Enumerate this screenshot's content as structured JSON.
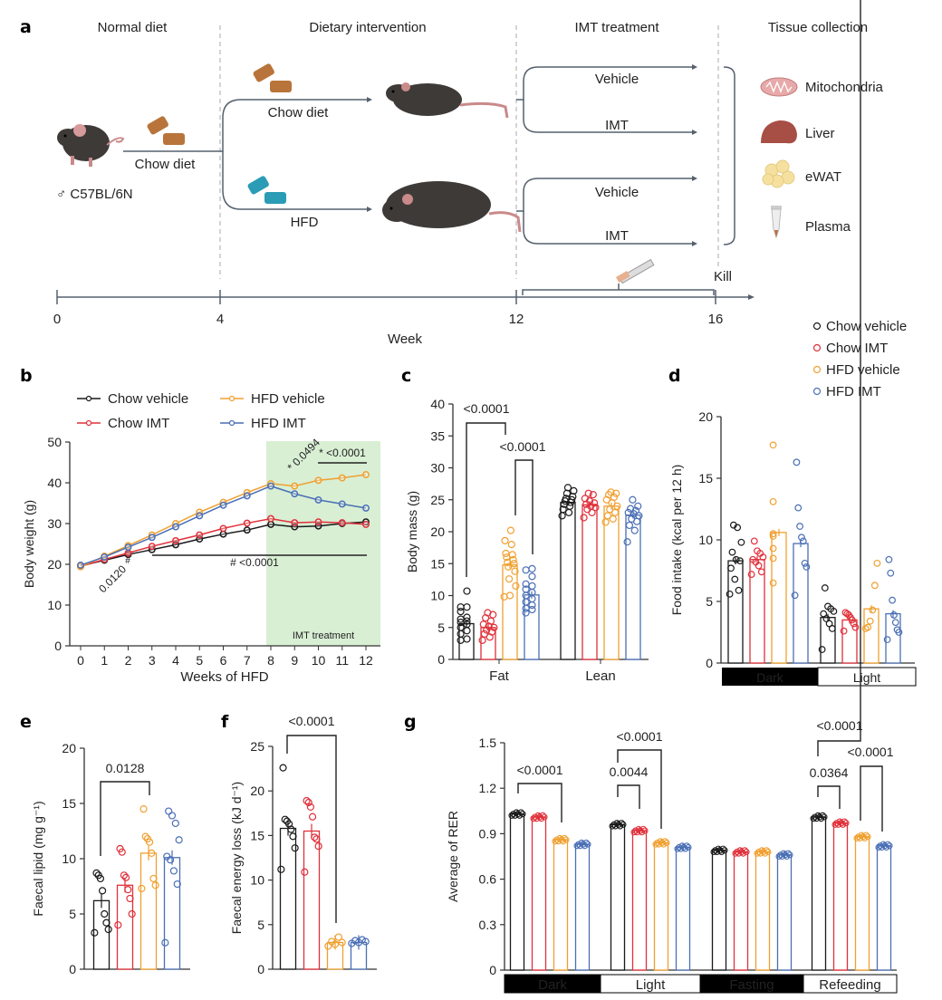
{
  "colors": {
    "chow_vehicle": "#1a1a1a",
    "chow_imt": "#e0303a",
    "hfd_vehicle": "#f0a030",
    "hfd_imt": "#4a6fb5",
    "imt_shade": "#d8efd4",
    "axis": "#333333",
    "timeline": "#55606e",
    "chow_pellet": "#b8743a",
    "hfd_pellet": "#2a9cb5",
    "mouse": "#3e3a38"
  },
  "panel_a": {
    "label": "a",
    "phases": [
      "Normal diet",
      "Dietary intervention",
      "IMT treatment",
      "Tissue collection"
    ],
    "mouse_strain": "♂ C57BL/6N",
    "initial_diet": "Chow diet",
    "branches": [
      "Chow diet",
      "HFD"
    ],
    "treatments": [
      "Vehicle",
      "IMT",
      "Vehicle",
      "IMT"
    ],
    "tissues": [
      "Mitochondria",
      "Liver",
      "eWAT",
      "Plasma"
    ],
    "kill_label": "Kill",
    "timeline_ticks": [
      "0",
      "4",
      "12",
      "16"
    ],
    "timeline_label": "Week"
  },
  "legend_groups": [
    "Chow vehicle",
    "Chow IMT",
    "HFD vehicle",
    "HFD IMT"
  ],
  "chart_data": [
    {
      "panel": "b",
      "type": "line",
      "xlabel": "Weeks of HFD",
      "ylabel": "Body weight (g)",
      "x": [
        0,
        1,
        2,
        3,
        4,
        5,
        6,
        7,
        8,
        9,
        10,
        11,
        12
      ],
      "ylim": [
        0,
        50
      ],
      "yticks": [
        0,
        10,
        20,
        30,
        40,
        50
      ],
      "shaded_region": {
        "from": 8,
        "to": 12,
        "label": "IMT treatment"
      },
      "series": [
        {
          "name": "Chow vehicle",
          "values": [
            19.6,
            21.0,
            22.4,
            23.6,
            24.8,
            26.2,
            27.4,
            28.4,
            29.8,
            29.2,
            29.4,
            30.0,
            30.4
          ]
        },
        {
          "name": "Chow IMT",
          "values": [
            19.5,
            21.2,
            22.8,
            24.4,
            25.8,
            27.2,
            28.8,
            30.1,
            31.2,
            30.2,
            30.4,
            30.2,
            29.8
          ]
        },
        {
          "name": "HFD vehicle",
          "values": [
            19.4,
            22.0,
            24.6,
            27.2,
            30.0,
            32.8,
            35.2,
            37.6,
            39.8,
            39.2,
            40.6,
            41.2,
            42.0
          ]
        },
        {
          "name": "HFD IMT",
          "values": [
            19.8,
            21.8,
            24.2,
            26.6,
            29.2,
            31.9,
            34.5,
            36.8,
            39.2,
            37.3,
            35.8,
            34.8,
            33.8
          ]
        }
      ],
      "annotations": [
        {
          "text": "0.0120",
          "rotated": true
        },
        {
          "text": "#"
        },
        {
          "text": "# <0.0001"
        },
        {
          "text": "* 0.0494",
          "rotated": true
        },
        {
          "text": "* <0.0001"
        }
      ]
    },
    {
      "panel": "c",
      "type": "bar",
      "ylabel": "Body mass (g)",
      "categories": [
        "Fat",
        "Lean"
      ],
      "ylim": [
        0,
        40
      ],
      "yticks": [
        0,
        5,
        10,
        15,
        20,
        25,
        30,
        35,
        40
      ],
      "series": [
        {
          "name": "Chow vehicle",
          "values": [
            5.6,
            24.6
          ],
          "points": [
            [
              3,
              3.2,
              4,
              4.5,
              5,
              5.5,
              5.8,
              6,
              6.3,
              6.6,
              7.5,
              8.2,
              8.2,
              10.7
            ],
            [
              22.5,
              23,
              23.5,
              24,
              24.3,
              24.6,
              24.8,
              25,
              25.2,
              25.5,
              26,
              26.4,
              26.9
            ]
          ]
        },
        {
          "name": "Chow IMT",
          "values": [
            5.0,
            24.2
          ],
          "points": [
            [
              3,
              3.5,
              4,
              4.3,
              4.6,
              5,
              5.2,
              5.5,
              6,
              6.5,
              7,
              7.3
            ],
            [
              22.2,
              23,
              23.5,
              23.8,
              24,
              24.3,
              24.5,
              24.8,
              25.2,
              25.8,
              26
            ]
          ]
        },
        {
          "name": "HFD vehicle",
          "values": [
            14.8,
            24.0
          ],
          "points": [
            [
              9.8,
              10,
              11.5,
              12.6,
              13.8,
              14.5,
              15,
              15.2,
              15.6,
              16,
              16.4,
              16.6,
              18,
              18.6,
              20.2
            ],
            [
              21.5,
              22,
              22.5,
              23,
              23.5,
              24,
              24.5,
              25,
              25.4,
              25.8,
              26,
              26.2
            ]
          ]
        },
        {
          "name": "HFD IMT",
          "values": [
            10.1,
            22.6
          ],
          "points": [
            [
              7.3,
              7.8,
              8,
              8.5,
              9,
              9.5,
              10,
              10.5,
              11,
              11.5,
              11.8,
              13,
              14,
              14.2
            ],
            [
              18.4,
              20.2,
              21,
              21.6,
              22,
              22.5,
              22.8,
              23,
              23.3,
              23.6,
              24,
              25
            ]
          ]
        }
      ],
      "annotations": [
        {
          "text": "<0.0001",
          "compare": [
            "Fat: Chow vehicle",
            "Fat: HFD vehicle"
          ]
        },
        {
          "text": "<0.0001",
          "compare": [
            "Fat: HFD vehicle",
            "Fat: HFD IMT"
          ]
        }
      ]
    },
    {
      "panel": "d",
      "type": "bar",
      "ylabel": "Food intake (kcal per 12 h)",
      "categories": [
        "Dark",
        "Light"
      ],
      "ylim": [
        0,
        20
      ],
      "yticks": [
        0,
        5,
        10,
        15,
        20
      ],
      "series": [
        {
          "name": "Chow vehicle",
          "values": [
            8.3,
            3.7
          ],
          "points": [
            [
              5.6,
              5.9,
              6.8,
              7.7,
              8.3,
              8.4,
              9.0,
              9.8,
              11.0,
              11.2
            ],
            [
              1.1,
              2.8,
              3.2,
              3.6,
              4.0,
              4.2,
              4.4,
              4.6,
              6.1
            ]
          ]
        },
        {
          "name": "Chow IMT",
          "values": [
            8.4,
            3.5
          ],
          "points": [
            [
              7.2,
              7.4,
              7.9,
              8.2,
              8.4,
              8.6,
              8.9,
              9.1,
              9.9
            ],
            [
              2.6,
              2.9,
              3.2,
              3.5,
              3.7,
              3.9,
              4.0,
              4.1
            ]
          ]
        },
        {
          "name": "HFD vehicle",
          "values": [
            10.6,
            4.4
          ],
          "points": [
            [
              6.5,
              8.5,
              9.3,
              10.3,
              10.5,
              13.1,
              17.7
            ],
            [
              2.8,
              2.9,
              3.4,
              4.3,
              6.3,
              8.1
            ]
          ]
        },
        {
          "name": "HFD IMT",
          "values": [
            9.7,
            4.0
          ],
          "points": [
            [
              5.5,
              7.8,
              8.1,
              9.9,
              10.2,
              11.1,
              12.6,
              16.3
            ],
            [
              1.9,
              2.5,
              2.7,
              3.3,
              3.9,
              5.1,
              7.3,
              8.4
            ]
          ]
        }
      ]
    },
    {
      "panel": "e",
      "type": "bar",
      "ylabel": "Faecal lipid (mg g⁻¹)",
      "categories": [
        "Chow vehicle",
        "Chow IMT",
        "HFD vehicle",
        "HFD IMT"
      ],
      "ylim": [
        0,
        20
      ],
      "yticks": [
        0,
        5,
        10,
        15,
        20
      ],
      "values": [
        6.2,
        7.6,
        10.5,
        10.1
      ],
      "points": [
        [
          3.3,
          3.6,
          4.2,
          5.0,
          7.1,
          8.2,
          8.5,
          8.7
        ],
        [
          4.0,
          5.0,
          6.4,
          7.2,
          8.3,
          8.5,
          10.6,
          10.9
        ],
        [
          7.3,
          7.6,
          8.2,
          10.5,
          11.5,
          11.8,
          12.0,
          14.5
        ],
        [
          2.4,
          7.7,
          8.9,
          9.9,
          10.2,
          11.7,
          13.2,
          13.9,
          14.3
        ]
      ],
      "annotations": [
        {
          "text": "0.0128",
          "compare": [
            "Chow vehicle",
            "HFD vehicle"
          ]
        }
      ]
    },
    {
      "panel": "f",
      "type": "bar",
      "ylabel": "Faecal energy loss (kJ d⁻¹)",
      "categories": [
        "Chow vehicle",
        "Chow IMT",
        "HFD vehicle",
        "HFD IMT"
      ],
      "ylim": [
        0,
        25
      ],
      "yticks": [
        0,
        5,
        10,
        15,
        20,
        25
      ],
      "values": [
        15.8,
        15.5,
        3.0,
        3.0
      ],
      "points": [
        [
          11.2,
          13.6,
          14.9,
          15.7,
          16.3,
          16.6,
          16.8,
          22.6
        ],
        [
          10.9,
          13.8,
          14.6,
          14.8,
          17.1,
          18.2,
          18.7,
          18.9
        ],
        [
          2.6,
          2.8,
          3.0,
          3.1,
          3.6
        ],
        [
          2.9,
          3.0,
          3.1,
          3.2,
          3.3
        ]
      ],
      "annotations": [
        {
          "text": "<0.0001",
          "compare": [
            "Chow vehicle",
            "HFD vehicle"
          ]
        }
      ]
    },
    {
      "panel": "g",
      "type": "bar",
      "ylabel": "Average of RER",
      "categories": [
        "Dark",
        "Light",
        "Fasting",
        "Refeeding"
      ],
      "ylim": [
        0,
        1.5
      ],
      "yticks": [
        0,
        0.3,
        0.6,
        0.9,
        1.2,
        1.5
      ],
      "series": [
        {
          "name": "Chow vehicle",
          "values": [
            1.03,
            0.96,
            0.79,
            1.01
          ]
        },
        {
          "name": "Chow IMT",
          "values": [
            1.01,
            0.92,
            0.78,
            0.97
          ]
        },
        {
          "name": "HFD vehicle",
          "values": [
            0.86,
            0.84,
            0.78,
            0.88
          ]
        },
        {
          "name": "HFD IMT",
          "values": [
            0.83,
            0.81,
            0.76,
            0.82
          ]
        }
      ],
      "annotations": [
        {
          "text": "<0.0001",
          "category": "Dark",
          "compare": [
            "Chow vehicle",
            "HFD vehicle"
          ]
        },
        {
          "text": "0.0044",
          "category": "Light",
          "compare": [
            "Chow vehicle",
            "Chow IMT"
          ]
        },
        {
          "text": "<0.0001",
          "category": "Light",
          "compare": [
            "Chow vehicle",
            "HFD vehicle"
          ]
        },
        {
          "text": "0.0364",
          "category": "Refeeding",
          "compare": [
            "Chow vehicle",
            "Chow IMT"
          ]
        },
        {
          "text": "<0.0001",
          "category": "Refeeding",
          "compare": [
            "Chow vehicle",
            "HFD vehicle"
          ]
        },
        {
          "text": "<0.0001",
          "category": "Refeeding",
          "compare": [
            "HFD vehicle",
            "HFD IMT"
          ]
        }
      ]
    }
  ],
  "labels": {
    "b": "b",
    "c": "c",
    "d": "d",
    "e": "e",
    "f": "f",
    "g": "g"
  }
}
